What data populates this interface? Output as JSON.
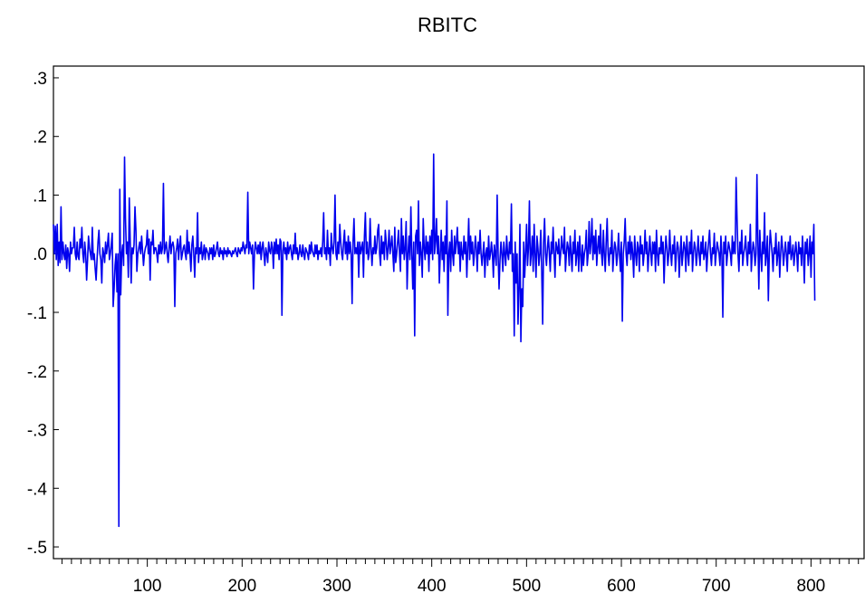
{
  "chart_data": {
    "type": "line",
    "title": "RBITC",
    "xlabel": "",
    "ylabel": "",
    "xlim": [
      1,
      856
    ],
    "ylim": [
      -0.52,
      0.32
    ],
    "x_ticks": [
      100,
      200,
      300,
      400,
      500,
      600,
      700,
      800
    ],
    "x_tick_labels": [
      "100",
      "200",
      "300",
      "400",
      "500",
      "600",
      "700",
      "800"
    ],
    "y_ticks": [
      0.3,
      0.2,
      0.1,
      0.0,
      -0.1,
      -0.2,
      -0.3,
      -0.4,
      -0.5
    ],
    "y_tick_labels": [
      ".3",
      ".2",
      ".1",
      ".0",
      "-.1",
      "-.2",
      "-.3",
      "-.4",
      "-.5"
    ],
    "x_minor_tick_step": 10,
    "grid": false,
    "line_color": "#0000ee",
    "series": [
      {
        "name": "",
        "x_start": 1,
        "x_step": 1,
        "values": [
          0.05,
          0.0,
          0.047,
          -0.01,
          0.05,
          -0.02,
          0.02,
          -0.015,
          0.08,
          -0.01,
          0.02,
          0.0,
          -0.01,
          0.015,
          -0.025,
          0.01,
          0.0,
          -0.03,
          0.02,
          0.0,
          0.01,
          0.01,
          0.045,
          0.0,
          -0.01,
          0.02,
          -0.005,
          -0.01,
          0.025,
          0.01,
          0.045,
          0.0,
          -0.015,
          0.02,
          0.0,
          -0.045,
          -0.01,
          0.03,
          0.01,
          0.0,
          -0.01,
          0.045,
          -0.01,
          0.0,
          -0.025,
          -0.045,
          -0.01,
          0.02,
          0.04,
          0.0,
          -0.01,
          -0.05,
          0.01,
          0.0,
          -0.015,
          0.02,
          0.0,
          0.015,
          0.035,
          -0.01,
          0.0,
          0.015,
          0.035,
          -0.09,
          -0.06,
          -0.02,
          0.0,
          -0.065,
          0.0,
          -0.465,
          0.11,
          -0.07,
          0.0,
          0.015,
          -0.02,
          0.165,
          0.06,
          0.0,
          0.02,
          -0.04,
          0.095,
          0.02,
          -0.05,
          0.01,
          0.0,
          0.015,
          0.08,
          0.04,
          -0.03,
          0.0,
          0.01,
          0.02,
          0.0,
          0.03,
          0.005,
          -0.02,
          0.0,
          0.01,
          0.015,
          0.04,
          0.0,
          0.025,
          -0.045,
          0.02,
          0.015,
          0.04,
          0.0,
          0.01,
          0.01,
          0.0,
          -0.015,
          0.015,
          0.0,
          0.02,
          0.0,
          0.01,
          0.12,
          0.0,
          0.01,
          0.02,
          0.0,
          -0.015,
          0.01,
          0.03,
          0.0,
          0.015,
          0.02,
          0.01,
          -0.09,
          0.0,
          0.01,
          0.025,
          -0.01,
          0.015,
          0.03,
          -0.01,
          0.0,
          0.01,
          0.015,
          0.0,
          -0.01,
          0.04,
          0.0,
          0.02,
          0.0,
          -0.03,
          0.015,
          0.03,
          0.0,
          -0.04,
          0.01,
          0.0,
          0.07,
          -0.015,
          0.01,
          0.0,
          0.02,
          -0.01,
          0.0,
          0.015,
          -0.01,
          0.01,
          0.005,
          0.0,
          -0.01,
          0.01,
          0.0,
          0.01,
          -0.01,
          0.015,
          -0.005,
          0.0,
          0.01,
          0.02,
          0.0,
          -0.005,
          0.01,
          0.0,
          0.005,
          -0.01,
          0.01,
          0.0,
          0.005,
          -0.005,
          0.01,
          0.0,
          0.005,
          0.0,
          -0.005,
          0.005,
          0.0,
          0.005,
          0.01,
          0.0,
          -0.005,
          0.01,
          0.005,
          0.0,
          0.01,
          0.005,
          0.02,
          0.01,
          0.0,
          0.015,
          0.01,
          0.105,
          0.0,
          0.02,
          0.01,
          0.0,
          0.015,
          -0.06,
          0.0,
          0.02,
          0.01,
          0.0,
          0.015,
          0.0,
          0.02,
          -0.01,
          0.01,
          0.02,
          0.0,
          -0.02,
          0.01,
          0.0,
          -0.015,
          0.02,
          0.005,
          0.0,
          0.02,
          0.01,
          -0.025,
          0.02,
          0.0,
          0.025,
          0.0,
          0.015,
          -0.01,
          0.025,
          0.02,
          -0.105,
          0.005,
          0.02,
          0.0,
          0.01,
          -0.01,
          0.02,
          0.0,
          0.01,
          0.015,
          0.0,
          -0.01,
          0.015,
          0.0,
          0.035,
          0.0,
          0.01,
          -0.01,
          0.0,
          0.015,
          0.0,
          -0.005,
          0.015,
          0.0,
          -0.01,
          0.01,
          0.005,
          0.0,
          -0.01,
          0.015,
          0.0,
          0.02,
          0.005,
          0.0,
          -0.005,
          0.015,
          0.0,
          0.015,
          -0.01,
          0.005,
          0.0,
          0.01,
          -0.005,
          0.02,
          0.07,
          0.0,
          0.01,
          -0.01,
          0.04,
          0.0,
          0.01,
          -0.02,
          0.035,
          0.01,
          0.0,
          0.02,
          0.1,
          0.0,
          -0.01,
          0.02,
          0.0,
          0.05,
          0.02,
          0.0,
          -0.01,
          0.02,
          0.04,
          0.0,
          0.02,
          -0.01,
          0.03,
          0.0,
          0.02,
          0.0,
          -0.085,
          0.02,
          0.06,
          0.0,
          0.01,
          0.0,
          0.02,
          -0.04,
          0.02,
          0.0,
          0.01,
          0.02,
          -0.04,
          0.03,
          0.07,
          0.0,
          0.02,
          -0.01,
          0.0,
          0.06,
          0.01,
          -0.02,
          0.01,
          0.0,
          0.03,
          0.0,
          0.01,
          0.04,
          0.05,
          0.0,
          -0.02,
          0.03,
          0.0,
          0.02,
          -0.01,
          0.04,
          0.02,
          -0.01,
          0.01,
          0.04,
          0.0,
          0.015,
          0.03,
          0.0,
          -0.03,
          0.045,
          -0.015,
          0.0,
          0.02,
          0.04,
          0.0,
          -0.03,
          0.06,
          0.0,
          0.03,
          -0.01,
          0.01,
          0.055,
          -0.06,
          0.0,
          0.03,
          -0.01,
          0.08,
          0.0,
          -0.06,
          0.02,
          -0.14,
          0.03,
          0.04,
          0.0,
          0.09,
          -0.02,
          0.02,
          0.0,
          -0.04,
          0.06,
          0.01,
          -0.01,
          0.03,
          0.0,
          0.02,
          -0.03,
          0.03,
          0.0,
          0.04,
          -0.01,
          0.17,
          0.0,
          0.02,
          0.06,
          0.0,
          0.03,
          -0.05,
          0.0,
          0.04,
          -0.01,
          0.02,
          -0.03,
          0.03,
          0.0,
          0.09,
          -0.105,
          0.0,
          0.02,
          -0.03,
          0.04,
          0.0,
          -0.02,
          0.03,
          0.0,
          0.02,
          0.045,
          0.0,
          0.02,
          -0.03,
          0.02,
          0.0,
          -0.01,
          0.03,
          0.0,
          0.02,
          -0.04,
          0.01,
          0.06,
          -0.01,
          0.03,
          0.0,
          0.02,
          -0.02,
          0.0,
          0.03,
          0.01,
          -0.03,
          0.02,
          0.0,
          0.04,
          0.0,
          -0.02,
          0.0,
          0.02,
          -0.04,
          0.0,
          0.01,
          -0.02,
          0.03,
          -0.01,
          0.0,
          0.02,
          0.0,
          -0.04,
          0.015,
          0.0,
          -0.02,
          0.1,
          0.0,
          -0.06,
          -0.01,
          0.02,
          0.0,
          -0.03,
          0.02,
          0.0,
          -0.02,
          0.03,
          0.0,
          -0.01,
          0.02,
          0.0,
          0.085,
          -0.03,
          0.0,
          -0.14,
          0.02,
          -0.05,
          0.0,
          -0.12,
          -0.06,
          0.05,
          -0.15,
          -0.06,
          -0.09,
          0.02,
          -0.04,
          0.0,
          0.05,
          -0.02,
          0.01,
          0.09,
          -0.02,
          0.0,
          0.03,
          -0.03,
          0.05,
          0.0,
          -0.04,
          0.03,
          0.01,
          -0.02,
          0.0,
          0.04,
          -0.03,
          -0.12,
          0.02,
          0.06,
          0.0,
          -0.02,
          0.01,
          0.03,
          0.0,
          -0.03,
          0.02,
          0.0,
          0.045,
          0.0,
          -0.04,
          0.02,
          0.01,
          0.0,
          0.025,
          -0.02,
          0.0,
          0.03,
          0.01,
          0.0,
          0.045,
          -0.03,
          0.0,
          0.02,
          0.01,
          -0.02,
          0.03,
          0.0,
          -0.03,
          0.02,
          0.0,
          0.04,
          -0.02,
          0.0,
          0.02,
          -0.03,
          0.03,
          0.0,
          -0.03,
          0.015,
          -0.02,
          0.0,
          0.01,
          0.04,
          -0.02,
          0.0,
          0.055,
          0.0,
          0.02,
          0.06,
          -0.01,
          0.03,
          0.0,
          0.04,
          -0.02,
          0.01,
          0.03,
          0.0,
          0.05,
          0.0,
          -0.02,
          0.04,
          0.0,
          -0.03,
          0.02,
          0.06,
          0.0,
          -0.02,
          0.01,
          0.0,
          0.04,
          -0.03,
          0.0,
          0.02,
          0.01,
          -0.02,
          0.0,
          0.035,
          0.0,
          -0.03,
          0.02,
          -0.115,
          0.0,
          0.02,
          0.06,
          0.0,
          -0.02,
          0.02,
          0.0,
          0.03,
          -0.01,
          0.02,
          0.0,
          -0.04,
          0.03,
          0.0,
          -0.02,
          0.02,
          0.01,
          -0.03,
          0.03,
          0.0,
          0.015,
          -0.02,
          0.0,
          0.04,
          0.0,
          0.02,
          -0.03,
          0.0,
          0.03,
          0.0,
          -0.02,
          0.02,
          0.0,
          0.02,
          -0.03,
          0.04,
          0.0,
          -0.02,
          0.01,
          0.0,
          0.03,
          0.0,
          0.02,
          -0.05,
          0.0,
          0.03,
          0.01,
          -0.02,
          0.0,
          0.04,
          0.0,
          -0.02,
          0.015,
          0.0,
          0.03,
          -0.03,
          0.0,
          0.02,
          0.01,
          -0.04,
          0.0,
          0.03,
          -0.02,
          0.0,
          0.02,
          0.01,
          -0.03,
          0.03,
          0.0,
          -0.02,
          0.02,
          0.0,
          0.04,
          -0.03,
          0.0,
          0.02,
          0.01,
          -0.02,
          0.0,
          0.03,
          0.0,
          -0.02,
          0.02,
          0.0,
          0.03,
          -0.01,
          0.0,
          0.02,
          -0.03,
          0.0,
          0.02,
          0.04,
          0.0,
          -0.02,
          0.01,
          0.0,
          0.035,
          -0.02,
          0.0,
          0.02,
          0.01,
          0.0,
          -0.02,
          0.03,
          0.0,
          -0.108,
          0.02,
          0.0,
          0.03,
          -0.02,
          0.0,
          0.02,
          0.01,
          0.0,
          -0.02,
          0.03,
          0.0,
          0.02,
          0.0,
          0.13,
          0.06,
          0.0,
          -0.03,
          0.02,
          0.0,
          0.04,
          -0.02,
          0.0,
          0.01,
          0.03,
          0.0,
          -0.02,
          0.02,
          0.0,
          0.05,
          -0.03,
          0.0,
          0.02,
          0.01,
          -0.02,
          0.0,
          0.135,
          0.02,
          -0.06,
          0.04,
          0.0,
          -0.03,
          0.02,
          0.0,
          0.07,
          -0.02,
          0.0,
          0.03,
          -0.08,
          0.0,
          0.04,
          0.02,
          0.0,
          -0.03,
          0.01,
          0.0,
          0.035,
          -0.02,
          0.0,
          0.02,
          -0.04,
          0.0,
          0.03,
          0.01,
          -0.02,
          0.0,
          0.02,
          0.0,
          -0.03,
          0.02,
          0.0,
          0.03,
          -0.01,
          0.0,
          0.015,
          -0.02,
          0.0,
          0.02,
          0.0,
          -0.03,
          0.02,
          0.0,
          0.01,
          -0.02,
          0.03,
          0.0,
          -0.05,
          0.02,
          0.0,
          0.025,
          -0.02,
          0.0,
          0.03,
          -0.04,
          0.02,
          0.0,
          0.05,
          -0.08
        ]
      }
    ]
  }
}
